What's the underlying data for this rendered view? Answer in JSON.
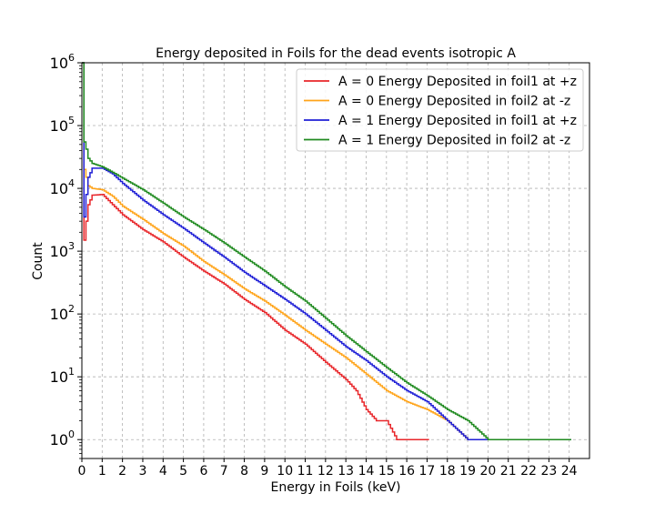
{
  "chart_data": {
    "type": "line",
    "title": "Energy deposited in Foils for the dead events isotropic A",
    "xlabel": "Energy in Foils (keV)",
    "ylabel": "Count",
    "xlim": [
      0,
      25
    ],
    "ylim": [
      0.5,
      1000000
    ],
    "yscale": "log",
    "grid": true,
    "legend_position": "top-right",
    "x_ticks": [
      "0",
      "1",
      "2",
      "3",
      "4",
      "5",
      "6",
      "7",
      "8",
      "9",
      "10",
      "11",
      "12",
      "13",
      "14",
      "15",
      "16",
      "17",
      "18",
      "19",
      "20",
      "21",
      "22",
      "23",
      "24"
    ],
    "y_ticks": [
      {
        "value": 1,
        "base": "10",
        "exp": "0"
      },
      {
        "value": 10,
        "base": "10",
        "exp": "1"
      },
      {
        "value": 100,
        "base": "10",
        "exp": "2"
      },
      {
        "value": 1000,
        "base": "10",
        "exp": "3"
      },
      {
        "value": 10000,
        "base": "10",
        "exp": "4"
      },
      {
        "value": 100000,
        "base": "10",
        "exp": "5"
      },
      {
        "value": 1000000,
        "base": "10",
        "exp": "6"
      }
    ],
    "series": [
      {
        "name": "A = 0 Energy Deposited in foil1 at +z",
        "color": "#e8262a",
        "x": [
          0,
          0.1,
          0.2,
          0.3,
          0.5,
          1,
          1.5,
          2,
          3,
          4,
          5,
          6,
          7,
          8,
          9,
          10,
          11,
          12,
          13,
          13.5,
          14,
          14.5,
          15,
          15.5,
          16,
          16.5,
          17
        ],
        "y": [
          1000000,
          1500,
          3000,
          5500,
          7800,
          8000,
          5500,
          3800,
          2200,
          1400,
          800,
          480,
          300,
          170,
          105,
          55,
          33,
          17,
          9,
          6,
          3,
          2,
          2,
          1,
          1,
          1,
          1
        ]
      },
      {
        "name": "A = 0 Energy Deposited in foil2 at -z",
        "color": "#ffa41a",
        "x": [
          0,
          0.1,
          0.2,
          0.3,
          0.5,
          1,
          1.5,
          2,
          3,
          4,
          5,
          6,
          7,
          8,
          9,
          10,
          11,
          12,
          13,
          14,
          15,
          16,
          17,
          18,
          19,
          20,
          21,
          22,
          23,
          24
        ],
        "y": [
          1000000,
          20000,
          15000,
          11000,
          10000,
          9500,
          7500,
          5200,
          3200,
          1900,
          1200,
          680,
          420,
          250,
          160,
          95,
          55,
          33,
          20,
          11,
          6,
          4,
          3,
          2,
          1,
          1,
          1,
          1,
          1,
          1
        ]
      },
      {
        "name": "A = 1 Energy Deposited in foil1 at +z",
        "color": "#1f1fd6",
        "x": [
          0,
          0.1,
          0.2,
          0.3,
          0.5,
          1,
          1.5,
          2,
          3,
          4,
          5,
          6,
          7,
          8,
          9,
          10,
          11,
          12,
          13,
          14,
          15,
          16,
          17,
          18,
          19,
          20,
          21,
          22,
          23,
          24
        ],
        "y": [
          1000000,
          3500,
          8000,
          15000,
          21000,
          21000,
          17000,
          12000,
          6500,
          3800,
          2300,
          1350,
          800,
          460,
          280,
          170,
          100,
          55,
          30,
          18,
          10,
          6,
          4,
          2,
          1,
          1,
          1,
          1,
          1,
          1
        ]
      },
      {
        "name": "A = 1 Energy Deposited in foil2 at -z",
        "color": "#1f8a1f",
        "x": [
          0,
          0.1,
          0.2,
          0.3,
          0.5,
          1,
          1.5,
          2,
          3,
          4,
          5,
          6,
          7,
          8,
          9,
          10,
          11,
          12,
          13,
          14,
          15,
          16,
          17,
          18,
          19,
          20,
          21,
          22,
          23,
          24
        ],
        "y": [
          1000000,
          55000,
          42000,
          30000,
          25000,
          22000,
          18000,
          14500,
          9500,
          5800,
          3500,
          2200,
          1350,
          800,
          480,
          270,
          160,
          85,
          45,
          25,
          14,
          8,
          5,
          3,
          2,
          1,
          1,
          1,
          1,
          1
        ]
      }
    ]
  }
}
